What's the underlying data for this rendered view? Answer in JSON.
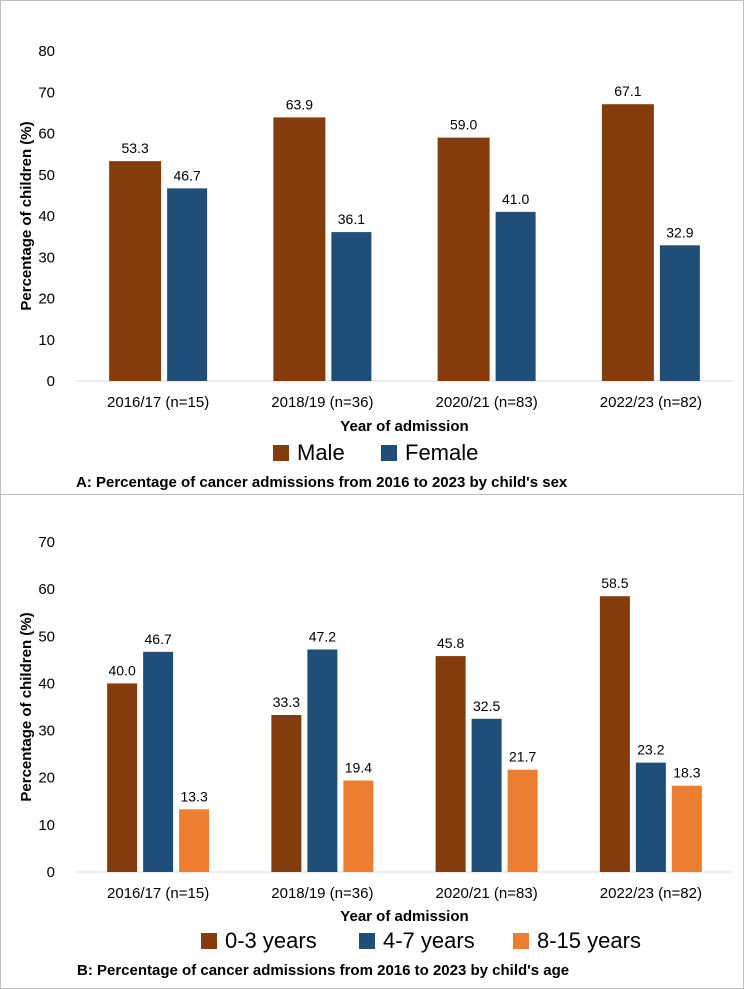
{
  "chart_data": [
    {
      "type": "bar",
      "categories": [
        "2016/17 (n=15)",
        "2018/19 (n=36)",
        "2020/21 (n=83)",
        "2022/23 (n=82)"
      ],
      "series": [
        {
          "name": "Male",
          "color": "#843C0C",
          "values": [
            53.3,
            63.9,
            59.0,
            67.1
          ],
          "labels": [
            "53.3",
            "63.9",
            "59.0",
            "67.1"
          ]
        },
        {
          "name": "Female",
          "color": "#1F4E79",
          "values": [
            46.7,
            36.1,
            41.0,
            32.9
          ],
          "labels": [
            "46.7",
            "36.1",
            "41.0",
            "32.9"
          ]
        }
      ],
      "yticks": [
        0,
        10,
        20,
        30,
        40,
        50,
        60,
        70,
        80
      ],
      "ylim": [
        0,
        80
      ],
      "xlabel": "Year of admission",
      "ylabel": "Percentage of  children (%)",
      "caption": "A: Percentage of cancer admissions from 2016 to 2023 by child's sex",
      "legend_position": "bottom",
      "grid": false
    },
    {
      "type": "bar",
      "categories": [
        "2016/17 (n=15)",
        "2018/19 (n=36)",
        "2020/21 (n=83)",
        "2022/23 (n=82)"
      ],
      "series": [
        {
          "name": "0-3 years",
          "color": "#843C0C",
          "values": [
            40.0,
            33.3,
            45.8,
            58.5
          ],
          "labels": [
            "40.0",
            "33.3",
            "45.8",
            "58.5"
          ]
        },
        {
          "name": "4-7 years",
          "color": "#1F4E79",
          "values": [
            46.7,
            47.2,
            32.5,
            23.2
          ],
          "labels": [
            "46.7",
            "47.2",
            "32.5",
            "23.2"
          ]
        },
        {
          "name": "8-15 years",
          "color": "#ED7D31",
          "values": [
            13.3,
            19.4,
            21.7,
            18.3
          ],
          "labels": [
            "13.3",
            "19.4",
            "21.7",
            "18.3"
          ]
        }
      ],
      "yticks": [
        0,
        10,
        20,
        30,
        40,
        50,
        60,
        70
      ],
      "ylim": [
        0,
        70
      ],
      "xlabel": "Year of admission",
      "ylabel": "Percentage of children (%)",
      "caption": "B: Percentage of cancer admissions from 2016 to 2023 by child's age",
      "legend_position": "bottom",
      "grid": false
    }
  ]
}
